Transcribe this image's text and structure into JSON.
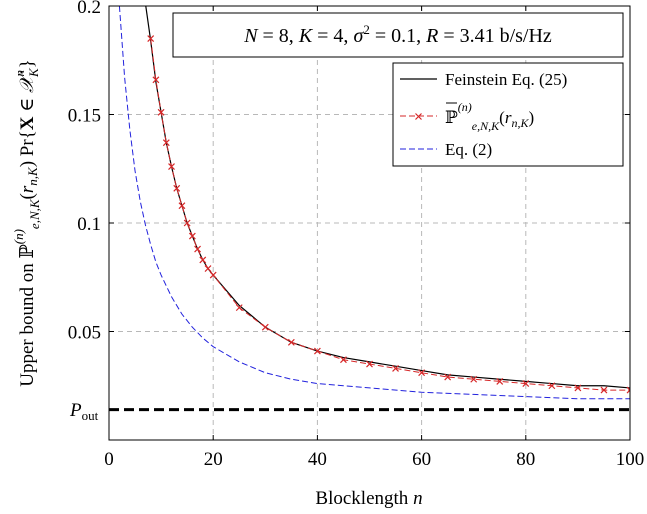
{
  "chart_data": {
    "type": "line",
    "title": "",
    "info_box": "N = 8, K = 4, σ² = 0.1, R = 3.41 b/s/Hz",
    "xlabel": "Blocklength n",
    "ylabel": "Upper bound on ℙ(n)e,N,K(rn,K) Pr{X ∈ 𝒳ⁿK}",
    "xlim": [
      0,
      100
    ],
    "ylim": [
      0,
      0.2
    ],
    "x_ticks": [
      "0",
      "20",
      "40",
      "60",
      "80",
      "100"
    ],
    "y_ticks": [
      "0.05",
      "0.1",
      "0.15",
      "0.2"
    ],
    "grid": true,
    "legend_position": "top-right",
    "series": [
      {
        "name": "Feinstein Eq. (25)",
        "color": "#000000",
        "style": "solid",
        "x": [
          6,
          7,
          8,
          9,
          10,
          11,
          12,
          13,
          14,
          15,
          16,
          17,
          18,
          19,
          20,
          25,
          30,
          35,
          40,
          45,
          50,
          55,
          60,
          65,
          70,
          75,
          80,
          85,
          90,
          95,
          100
        ],
        "y": [
          0.22,
          0.201,
          0.184,
          0.165,
          0.151,
          0.137,
          0.126,
          0.116,
          0.108,
          0.1,
          0.094,
          0.088,
          0.083,
          0.079,
          0.076,
          0.062,
          0.052,
          0.045,
          0.041,
          0.038,
          0.036,
          0.034,
          0.032,
          0.03,
          0.029,
          0.028,
          0.027,
          0.026,
          0.025,
          0.025,
          0.024
        ]
      },
      {
        "name": "ℙ(n)e,N,K(rn,K)",
        "color": "#d62728",
        "style": "dashed",
        "marker": "x",
        "x": [
          8,
          9,
          10,
          11,
          12,
          13,
          14,
          15,
          16,
          17,
          18,
          19,
          20,
          25,
          30,
          35,
          40,
          45,
          50,
          55,
          60,
          65,
          70,
          75,
          80,
          85,
          90,
          95,
          100
        ],
        "y": [
          0.185,
          0.166,
          0.151,
          0.137,
          0.126,
          0.116,
          0.108,
          0.1,
          0.094,
          0.088,
          0.083,
          0.079,
          0.076,
          0.061,
          0.052,
          0.045,
          0.041,
          0.037,
          0.035,
          0.033,
          0.031,
          0.029,
          0.028,
          0.027,
          0.026,
          0.025,
          0.024,
          0.023,
          0.023
        ]
      },
      {
        "name": "Eq. (2)",
        "color": "#2222dd",
        "style": "dashed",
        "x": [
          2,
          3,
          4,
          5,
          6,
          7,
          8,
          9,
          10,
          12,
          14,
          16,
          18,
          20,
          25,
          30,
          35,
          40,
          45,
          50,
          60,
          70,
          80,
          90,
          100
        ],
        "y": [
          0.2,
          0.167,
          0.143,
          0.124,
          0.11,
          0.099,
          0.09,
          0.082,
          0.076,
          0.066,
          0.058,
          0.052,
          0.047,
          0.043,
          0.036,
          0.031,
          0.028,
          0.026,
          0.025,
          0.024,
          0.022,
          0.021,
          0.02,
          0.019,
          0.019
        ]
      },
      {
        "name": "",
        "label": "Pout",
        "color": "#000000",
        "style": "thick-dashed",
        "x": [
          0,
          100
        ],
        "y": [
          0.014,
          0.014
        ]
      }
    ]
  }
}
